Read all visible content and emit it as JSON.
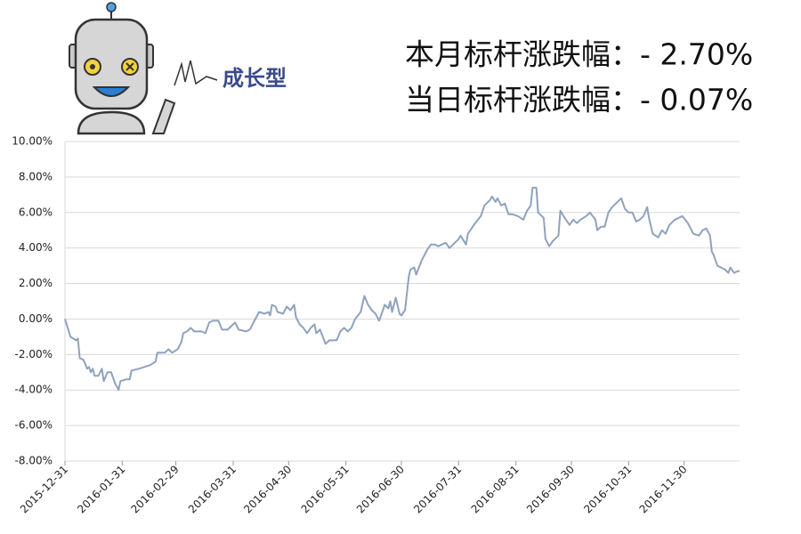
{
  "header": {
    "logo_text": "成长型",
    "lines": [
      "本月标杆涨跌幅：- 2.70%",
      "当日标杆涨跌幅：- 0.07%"
    ]
  },
  "chart_data": {
    "type": "line",
    "x": [
      "2015-12-31",
      "2016-01-03",
      "2016-01-06",
      "2016-01-07",
      "2016-01-08",
      "2016-01-10",
      "2016-01-12",
      "2016-01-13",
      "2016-01-14",
      "2016-01-15",
      "2016-01-16",
      "2016-01-18",
      "2016-01-20",
      "2016-01-21",
      "2016-01-23",
      "2016-01-25",
      "2016-01-27",
      "2016-01-29",
      "2016-01-30",
      "2016-02-02",
      "2016-02-04",
      "2016-02-05",
      "2016-02-09",
      "2016-02-15",
      "2016-02-18",
      "2016-02-19",
      "2016-02-23",
      "2016-02-25",
      "2016-02-27",
      "2016-03-01",
      "2016-03-03",
      "2016-03-04",
      "2016-03-06",
      "2016-03-08",
      "2016-03-10",
      "2016-03-14",
      "2016-03-16",
      "2016-03-18",
      "2016-03-20",
      "2016-03-23",
      "2016-03-25",
      "2016-03-28",
      "2016-03-30",
      "2016-04-01",
      "2016-04-03",
      "2016-04-07",
      "2016-04-09",
      "2016-04-11",
      "2016-04-14",
      "2016-04-17",
      "2016-04-19",
      "2016-04-20",
      "2016-04-21",
      "2016-04-23",
      "2016-04-24",
      "2016-04-27",
      "2016-04-29",
      "2016-05-01",
      "2016-05-03",
      "2016-05-04",
      "2016-05-06",
      "2016-05-08",
      "2016-05-10",
      "2016-05-12",
      "2016-05-14",
      "2016-05-15",
      "2016-05-17",
      "2016-05-20",
      "2016-05-22",
      "2016-05-26",
      "2016-05-28",
      "2016-05-30",
      "2016-06-01",
      "2016-06-03",
      "2016-06-05",
      "2016-06-08",
      "2016-06-10",
      "2016-06-12",
      "2016-06-14",
      "2016-06-16",
      "2016-06-18",
      "2016-06-21",
      "2016-06-23",
      "2016-06-24",
      "2016-06-25",
      "2016-06-27",
      "2016-06-29",
      "2016-06-30",
      "2016-07-02",
      "2016-07-04",
      "2016-07-05",
      "2016-07-07",
      "2016-07-08",
      "2016-07-11",
      "2016-07-14",
      "2016-07-16",
      "2016-07-18",
      "2016-07-20",
      "2016-07-22",
      "2016-07-24",
      "2016-07-26",
      "2016-07-28",
      "2016-07-31",
      "2016-08-01",
      "2016-08-04",
      "2016-08-05",
      "2016-08-09",
      "2016-08-12",
      "2016-08-14",
      "2016-08-17",
      "2016-08-18",
      "2016-08-20",
      "2016-08-21",
      "2016-08-23",
      "2016-08-25",
      "2016-08-27",
      "2016-08-29",
      "2016-09-01",
      "2016-09-04",
      "2016-09-06",
      "2016-09-08",
      "2016-09-09",
      "2016-09-11",
      "2016-09-12",
      "2016-09-15",
      "2016-09-16",
      "2016-09-18",
      "2016-09-20",
      "2016-09-23",
      "2016-09-24",
      "2016-09-27",
      "2016-09-29",
      "2016-10-01",
      "2016-10-03",
      "2016-10-05",
      "2016-10-08",
      "2016-10-10",
      "2016-10-13",
      "2016-10-14",
      "2016-10-16",
      "2016-10-18",
      "2016-10-20",
      "2016-10-22",
      "2016-10-25",
      "2016-10-27",
      "2016-10-29",
      "2016-10-31",
      "2016-11-02",
      "2016-11-04",
      "2016-11-06",
      "2016-11-08",
      "2016-11-10",
      "2016-11-11",
      "2016-11-13",
      "2016-11-16",
      "2016-11-18",
      "2016-11-20",
      "2016-11-22",
      "2016-11-25",
      "2016-11-27",
      "2016-11-29",
      "2016-12-02",
      "2016-12-04",
      "2016-12-05",
      "2016-12-08",
      "2016-12-10",
      "2016-12-12",
      "2016-12-14",
      "2016-12-15",
      "2016-12-16",
      "2016-12-18",
      "2016-12-20",
      "2016-12-22",
      "2016-12-24",
      "2016-12-25",
      "2016-12-27",
      "2016-12-29",
      "2016-12-30"
    ],
    "series": [
      {
        "color": "#8fa2bd",
        "values": [
          0.0,
          -1.0,
          -1.2,
          -1.1,
          -2.2,
          -2.3,
          -2.8,
          -2.7,
          -3.0,
          -2.8,
          -3.2,
          -3.2,
          -2.8,
          -3.5,
          -3.0,
          -3.0,
          -3.6,
          -4.0,
          -3.5,
          -3.4,
          -3.4,
          -2.9,
          -2.8,
          -2.6,
          -2.4,
          -1.9,
          -1.9,
          -1.7,
          -1.9,
          -1.7,
          -1.3,
          -0.8,
          -0.7,
          -0.5,
          -0.7,
          -0.7,
          -0.8,
          -0.2,
          -0.1,
          -0.1,
          -0.6,
          -0.6,
          -0.4,
          -0.2,
          -0.6,
          -0.7,
          -0.6,
          -0.2,
          0.4,
          0.3,
          0.4,
          0.2,
          0.8,
          0.7,
          0.4,
          0.3,
          0.7,
          0.5,
          0.8,
          0.1,
          -0.3,
          -0.5,
          -0.8,
          -0.5,
          -0.3,
          -0.8,
          -0.6,
          -1.4,
          -1.2,
          -1.2,
          -0.7,
          -0.5,
          -0.7,
          -0.5,
          0.0,
          0.4,
          1.3,
          0.8,
          0.5,
          0.3,
          -0.1,
          0.8,
          0.6,
          1.0,
          0.4,
          1.2,
          0.3,
          0.2,
          0.5,
          2.4,
          2.8,
          2.9,
          2.5,
          3.3,
          3.9,
          4.2,
          4.2,
          4.1,
          4.2,
          4.3,
          4.0,
          4.2,
          4.5,
          4.7,
          4.2,
          4.8,
          5.4,
          5.8,
          6.4,
          6.7,
          6.9,
          6.6,
          6.8,
          6.4,
          6.5,
          5.9,
          5.9,
          5.8,
          5.6,
          6.1,
          6.4,
          7.4,
          7.4,
          6.0,
          5.7,
          4.5,
          4.1,
          4.4,
          4.7,
          6.1,
          5.6,
          5.3,
          5.6,
          5.4,
          5.6,
          5.8,
          6.0,
          5.6,
          5.0,
          5.2,
          5.2,
          6.0,
          6.3,
          6.6,
          6.8,
          6.2,
          6.0,
          6.0,
          5.5,
          5.6,
          5.8,
          6.3,
          5.7,
          4.8,
          4.6,
          5.0,
          4.8,
          5.3,
          5.6,
          5.7,
          5.8,
          5.4,
          5.0,
          4.8,
          4.7,
          5.0,
          5.1,
          4.7,
          3.8,
          3.6,
          3.0,
          2.9,
          2.8,
          2.6,
          2.9,
          2.6,
          2.7,
          2.7
        ]
      }
    ],
    "xlim": [
      "2015-12-31",
      "2016-12-30"
    ],
    "xticks": [
      "2015-12-31",
      "2016-01-31",
      "2016-02-29",
      "2016-03-31",
      "2016-04-30",
      "2016-05-31",
      "2016-06-30",
      "2016-07-31",
      "2016-08-31",
      "2016-09-30",
      "2016-10-31",
      "2016-11-30"
    ],
    "ylim": [
      -8,
      10
    ],
    "yticks": [
      {
        "value": -8,
        "label": "-8.00%"
      },
      {
        "value": -6,
        "label": "-6.00%"
      },
      {
        "value": -4,
        "label": "-4.00%"
      },
      {
        "value": -2,
        "label": "-2.00%"
      },
      {
        "value": 0,
        "label": "0.00%"
      },
      {
        "value": 2,
        "label": "2.00%"
      },
      {
        "value": 4,
        "label": "4.00%"
      },
      {
        "value": 6,
        "label": "6.00%"
      },
      {
        "value": 8,
        "label": "8.00%"
      },
      {
        "value": 10,
        "label": "10.00%"
      }
    ],
    "grid": true
  }
}
